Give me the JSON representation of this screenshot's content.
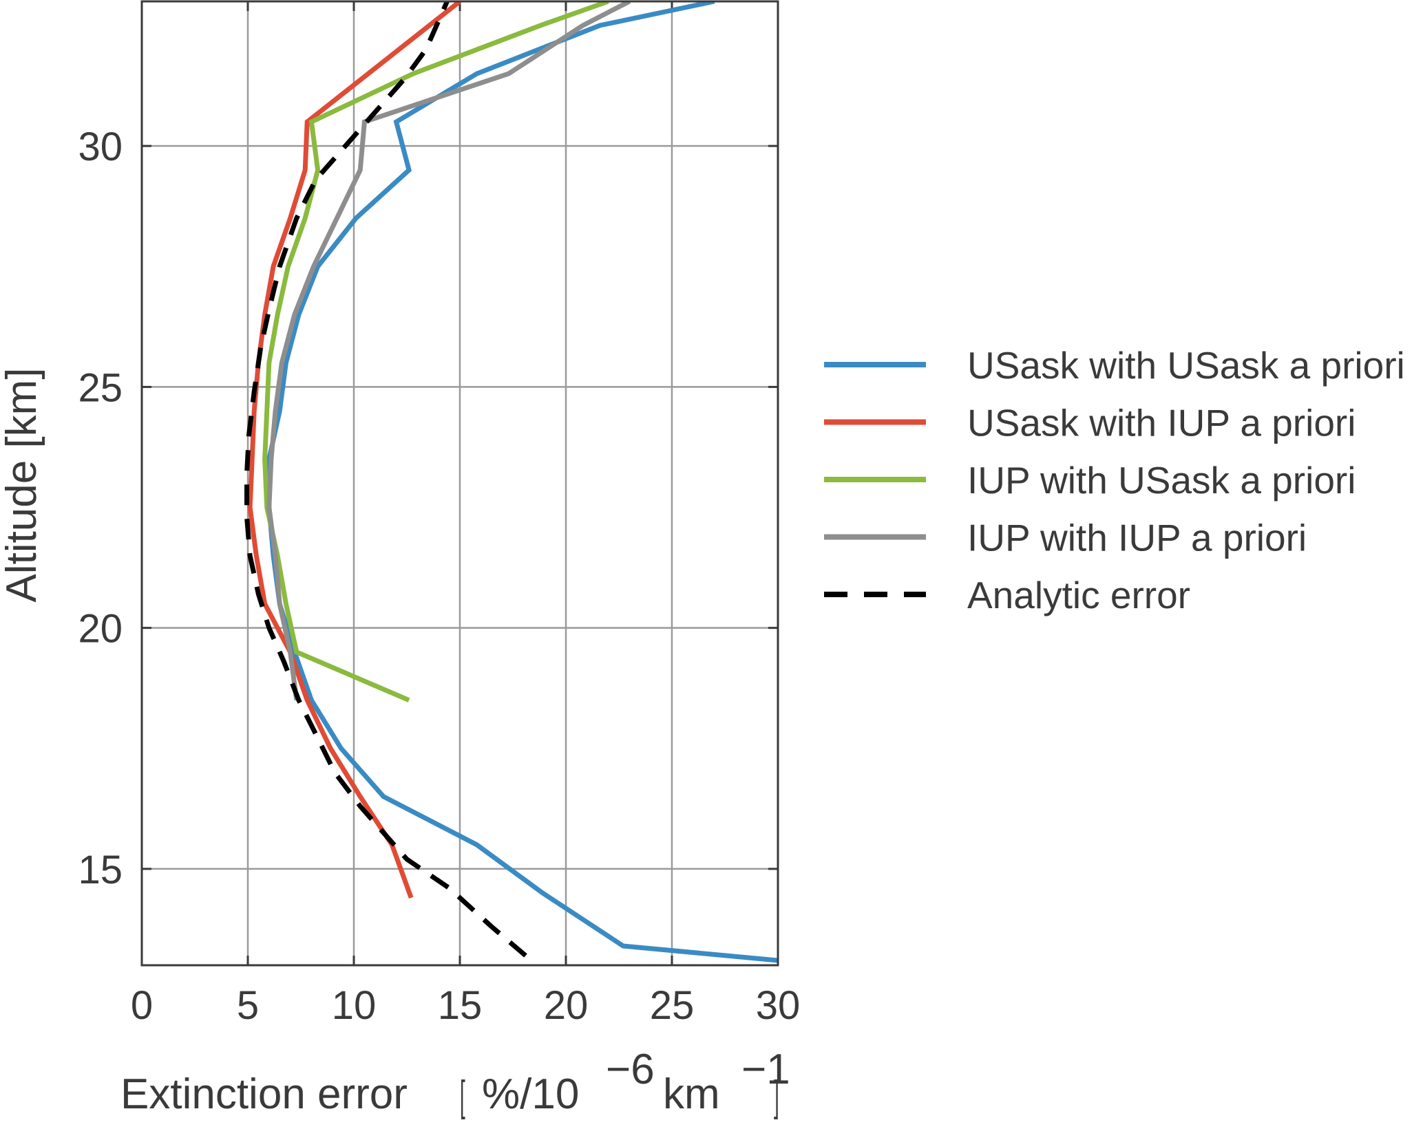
{
  "chart_data": {
    "type": "line",
    "title": "",
    "xlabel": "Extinction error",
    "xlabel_unit": {
      "open": "[",
      "prefix": "%/10",
      "exp1": "−6",
      "mid": "km",
      "exp2": "−1",
      "close": "]"
    },
    "ylabel": "Altitude [km]",
    "xlim": [
      0,
      30
    ],
    "ylim": [
      13,
      33
    ],
    "xticks": [
      "0",
      "5",
      "10",
      "15",
      "20",
      "25",
      "30"
    ],
    "yticks": [
      "15",
      "20",
      "25",
      "30"
    ],
    "grid": true,
    "legend_position": "right",
    "series": [
      {
        "name": "USask with USask a priori",
        "color": "#3a8bc4",
        "style": "solid",
        "points": [
          [
            30.0,
            13.1
          ],
          [
            22.7,
            13.4
          ],
          [
            18.9,
            14.5
          ],
          [
            15.8,
            15.5
          ],
          [
            11.4,
            16.5
          ],
          [
            9.4,
            17.5
          ],
          [
            8.0,
            18.5
          ],
          [
            7.2,
            19.5
          ],
          [
            6.5,
            20.5
          ],
          [
            6.2,
            21.5
          ],
          [
            6.0,
            22.5
          ],
          [
            6.0,
            23.5
          ],
          [
            6.5,
            24.5
          ],
          [
            6.8,
            25.5
          ],
          [
            7.4,
            26.5
          ],
          [
            8.3,
            27.5
          ],
          [
            10.1,
            28.5
          ],
          [
            12.6,
            29.5
          ],
          [
            12.0,
            30.5
          ],
          [
            15.8,
            31.5
          ],
          [
            21.6,
            32.5
          ],
          [
            27.0,
            33.0
          ]
        ]
      },
      {
        "name": "USask with IUP a priori",
        "color": "#e04b35",
        "style": "solid",
        "points": [
          [
            12.7,
            14.4
          ],
          [
            11.8,
            15.5
          ],
          [
            10.3,
            16.5
          ],
          [
            8.9,
            17.5
          ],
          [
            7.8,
            18.5
          ],
          [
            7.0,
            19.5
          ],
          [
            5.8,
            20.5
          ],
          [
            5.4,
            21.5
          ],
          [
            5.1,
            22.5
          ],
          [
            5.2,
            23.5
          ],
          [
            5.3,
            24.5
          ],
          [
            5.5,
            25.5
          ],
          [
            5.8,
            26.5
          ],
          [
            6.2,
            27.5
          ],
          [
            7.0,
            28.5
          ],
          [
            7.7,
            29.5
          ],
          [
            7.8,
            30.5
          ],
          [
            15.0,
            33.0
          ]
        ]
      },
      {
        "name": "IUP with USask a priori",
        "color": "#8aba3e",
        "style": "solid",
        "points": [
          [
            12.6,
            18.5
          ],
          [
            7.3,
            19.5
          ],
          [
            6.8,
            20.5
          ],
          [
            6.4,
            21.5
          ],
          [
            5.9,
            22.5
          ],
          [
            5.8,
            23.5
          ],
          [
            5.9,
            24.5
          ],
          [
            6.0,
            25.5
          ],
          [
            6.4,
            26.5
          ],
          [
            6.9,
            27.5
          ],
          [
            7.7,
            28.5
          ],
          [
            8.3,
            29.5
          ],
          [
            8.0,
            30.5
          ],
          [
            12.8,
            31.5
          ],
          [
            18.8,
            32.5
          ],
          [
            22.0,
            33.0
          ]
        ]
      },
      {
        "name": "IUP with IUP a priori",
        "color": "#8e8e8e",
        "style": "solid",
        "points": [
          [
            7.3,
            18.5
          ],
          [
            7.0,
            19.5
          ],
          [
            6.5,
            20.5
          ],
          [
            6.3,
            21.5
          ],
          [
            6.0,
            22.5
          ],
          [
            6.1,
            23.5
          ],
          [
            6.3,
            24.5
          ],
          [
            6.6,
            25.5
          ],
          [
            7.2,
            26.5
          ],
          [
            8.1,
            27.5
          ],
          [
            9.2,
            28.5
          ],
          [
            10.3,
            29.5
          ],
          [
            10.5,
            30.5
          ],
          [
            17.3,
            31.5
          ],
          [
            20.8,
            32.5
          ],
          [
            23.0,
            33.0
          ]
        ]
      },
      {
        "name": "Analytic error",
        "color": "#000000",
        "style": "dashed",
        "points": [
          [
            18.1,
            13.2
          ],
          [
            16.5,
            13.8
          ],
          [
            14.5,
            14.6
          ],
          [
            12.5,
            15.2
          ],
          [
            11.3,
            15.8
          ],
          [
            10.3,
            16.3
          ],
          [
            9.1,
            17.0
          ],
          [
            8.2,
            17.8
          ],
          [
            7.4,
            18.5
          ],
          [
            6.7,
            19.3
          ],
          [
            6.0,
            20.0
          ],
          [
            5.5,
            20.7
          ],
          [
            5.1,
            21.5
          ],
          [
            4.95,
            22.3
          ],
          [
            4.95,
            23.2
          ],
          [
            5.05,
            24.0
          ],
          [
            5.3,
            24.9
          ],
          [
            5.6,
            25.8
          ],
          [
            6.0,
            26.6
          ],
          [
            6.5,
            27.5
          ],
          [
            7.3,
            28.5
          ],
          [
            8.2,
            29.3
          ],
          [
            9.2,
            29.8
          ],
          [
            10.2,
            30.3
          ],
          [
            11.2,
            30.8
          ],
          [
            12.4,
            31.4
          ],
          [
            13.4,
            32.0
          ],
          [
            14.0,
            32.6
          ],
          [
            14.4,
            33.0
          ]
        ]
      }
    ]
  }
}
